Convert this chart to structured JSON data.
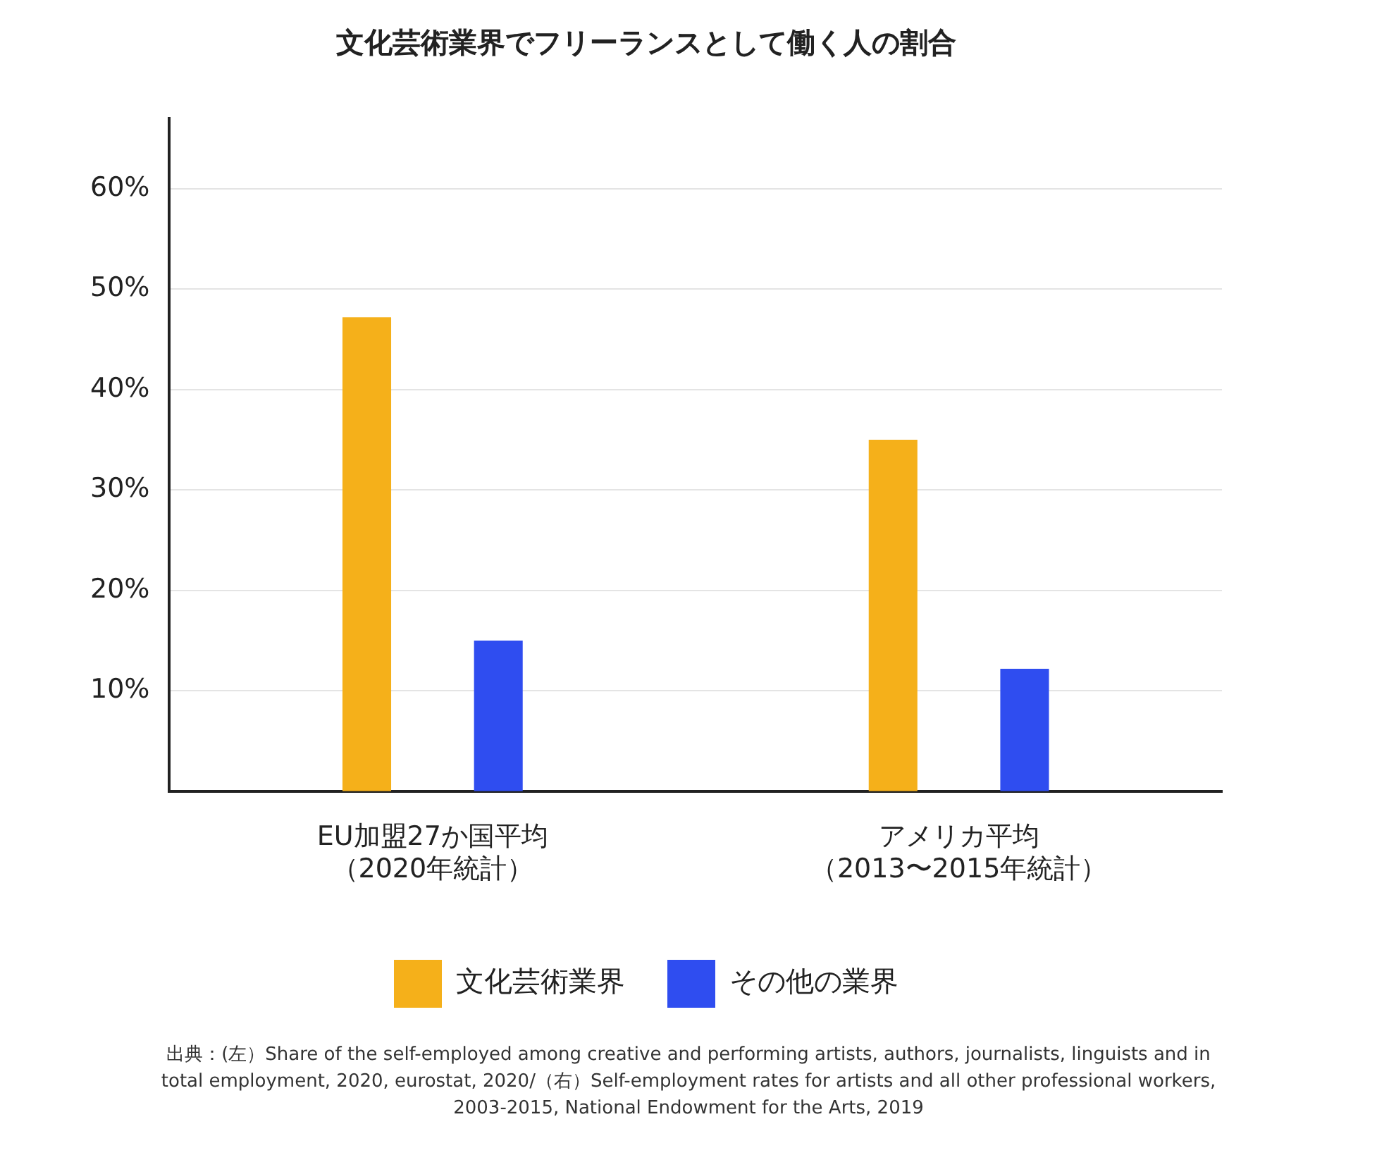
{
  "chart_data": {
    "type": "bar",
    "title": "文化芸術業界でフリーランスとして働く人の割合",
    "categories": [
      "EU加盟27か国平均（2020年統計）",
      "アメリカ平均（2013〜2015年統計）"
    ],
    "series": [
      {
        "name": "文化芸術業界",
        "color": "#f5b01a",
        "values": [
          47.2,
          35
        ]
      },
      {
        "name": "その他の業界",
        "color": "#2f4df0",
        "values": [
          15,
          12.2
        ]
      }
    ],
    "ylim": [
      0,
      67
    ],
    "yticks": [
      {
        "value": 10,
        "label": "10%"
      },
      {
        "value": 20,
        "label": "20%"
      },
      {
        "value": 30,
        "label": "30%"
      },
      {
        "value": 40,
        "label": "40%"
      },
      {
        "value": 50,
        "label": "50%"
      },
      {
        "value": 60,
        "label": "60%"
      }
    ],
    "grid": "y",
    "legend": "bottom",
    "annotations": [
      "出典：(左）Share of the self-employed among creative and performing artists, authors, journalists, linguists and in total employment, 2020, eurostat, 2020/（右）Self-employment rates for artists and all other professional workers, 2003-2015, National Endowment for the Arts, 2019"
    ]
  }
}
